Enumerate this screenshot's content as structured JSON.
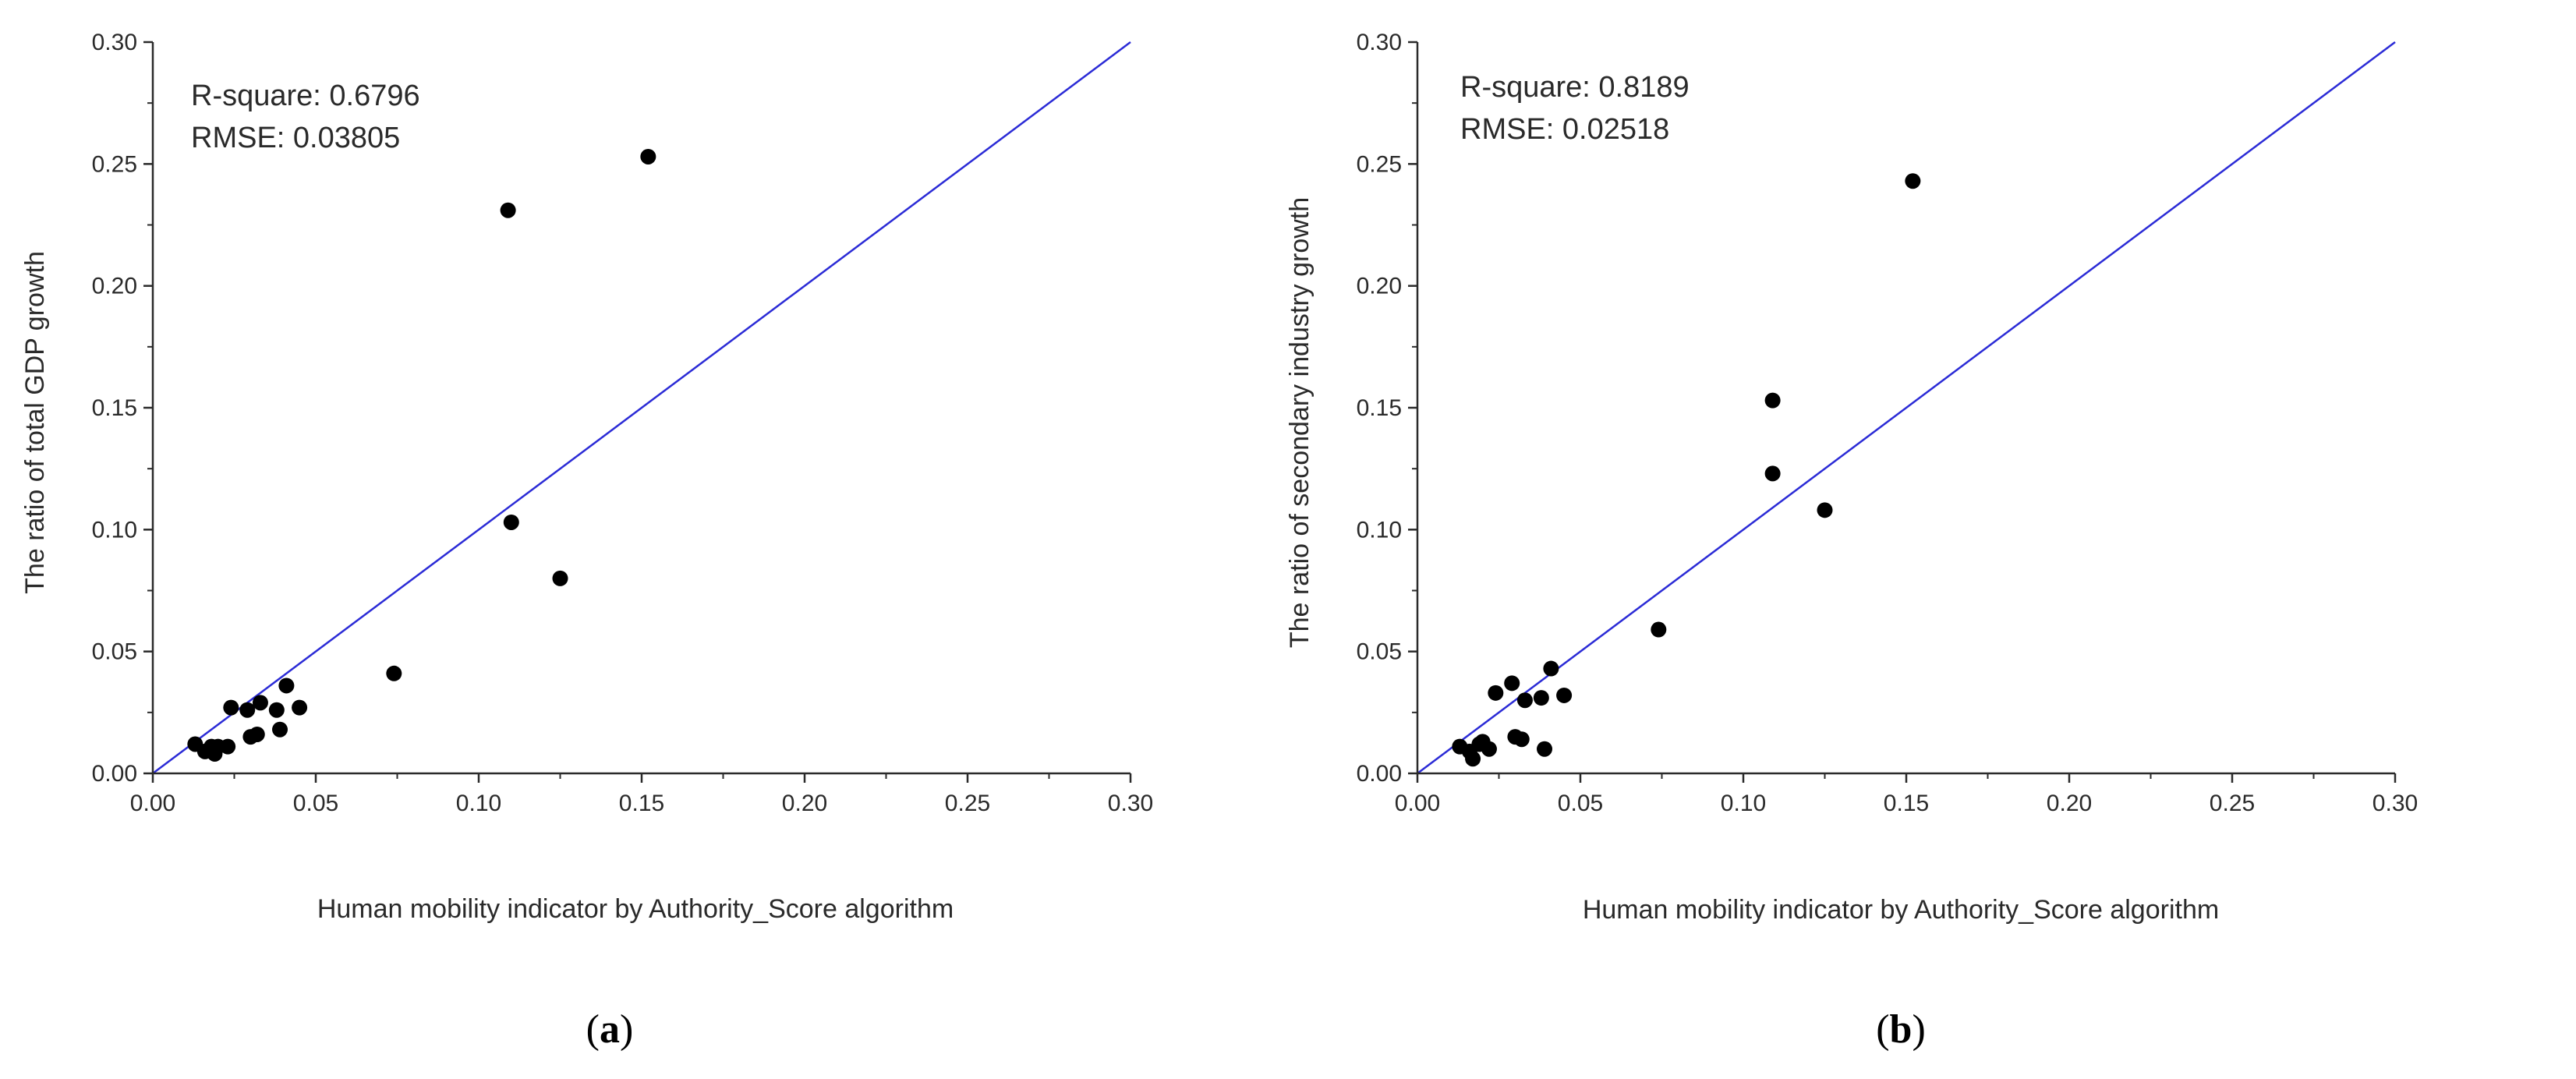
{
  "chart_data": [
    {
      "type": "scatter",
      "caption_letter": "a",
      "xlabel": "Human mobility indicator by Authority_Score algorithm",
      "ylabel": "The ratio of total GDP growth",
      "xlim": [
        0.0,
        0.3
      ],
      "ylim": [
        0.0,
        0.3
      ],
      "x_ticks": [
        "0.00",
        "0.05",
        "0.10",
        "0.15",
        "0.20",
        "0.25",
        "0.30"
      ],
      "y_ticks": [
        "0.00",
        "0.05",
        "0.10",
        "0.15",
        "0.20",
        "0.25",
        "0.30"
      ],
      "annotations": [
        "R-square: 0.6796",
        "RMSE: 0.03805"
      ],
      "reference_line": {
        "from": [
          0,
          0
        ],
        "to": [
          0.3,
          0.3
        ],
        "color": "#2b2bd6"
      },
      "points": [
        [
          0.013,
          0.012
        ],
        [
          0.016,
          0.009
        ],
        [
          0.018,
          0.011
        ],
        [
          0.019,
          0.008
        ],
        [
          0.02,
          0.011
        ],
        [
          0.023,
          0.011
        ],
        [
          0.024,
          0.027
        ],
        [
          0.029,
          0.026
        ],
        [
          0.03,
          0.015
        ],
        [
          0.032,
          0.016
        ],
        [
          0.033,
          0.029
        ],
        [
          0.038,
          0.026
        ],
        [
          0.039,
          0.018
        ],
        [
          0.041,
          0.036
        ],
        [
          0.045,
          0.027
        ],
        [
          0.074,
          0.041
        ],
        [
          0.109,
          0.231
        ],
        [
          0.11,
          0.103
        ],
        [
          0.125,
          0.08
        ],
        [
          0.152,
          0.253
        ]
      ]
    },
    {
      "type": "scatter",
      "caption_letter": "b",
      "xlabel": "Human mobility indicator by Authority_Score algorithm",
      "ylabel": "The ratio of secondary industry growth",
      "xlim": [
        0.0,
        0.3
      ],
      "ylim": [
        0.0,
        0.3
      ],
      "x_ticks": [
        "0.00",
        "0.05",
        "0.10",
        "0.15",
        "0.20",
        "0.25",
        "0.30"
      ],
      "y_ticks": [
        "0.00",
        "0.05",
        "0.10",
        "0.15",
        "0.20",
        "0.25",
        "0.30"
      ],
      "annotations": [
        "R-square: 0.8189",
        "RMSE: 0.02518"
      ],
      "reference_line": {
        "from": [
          0,
          0
        ],
        "to": [
          0.3,
          0.3
        ],
        "color": "#2b2bd6"
      },
      "points": [
        [
          0.013,
          0.011
        ],
        [
          0.016,
          0.009
        ],
        [
          0.017,
          0.006
        ],
        [
          0.019,
          0.012
        ],
        [
          0.02,
          0.013
        ],
        [
          0.022,
          0.01
        ],
        [
          0.024,
          0.033
        ],
        [
          0.029,
          0.037
        ],
        [
          0.03,
          0.015
        ],
        [
          0.032,
          0.014
        ],
        [
          0.033,
          0.03
        ],
        [
          0.038,
          0.031
        ],
        [
          0.039,
          0.01
        ],
        [
          0.041,
          0.043
        ],
        [
          0.045,
          0.032
        ],
        [
          0.074,
          0.059
        ],
        [
          0.109,
          0.153
        ],
        [
          0.109,
          0.123
        ],
        [
          0.125,
          0.108
        ],
        [
          0.152,
          0.243
        ]
      ]
    }
  ],
  "captions": [
    {
      "open": "(",
      "letter": "a",
      "close": ")"
    },
    {
      "open": "(",
      "letter": "b",
      "close": ")"
    }
  ],
  "colors": {
    "line": "#2b2bd6",
    "point": "#000000",
    "axis": "#2a2a2a"
  }
}
